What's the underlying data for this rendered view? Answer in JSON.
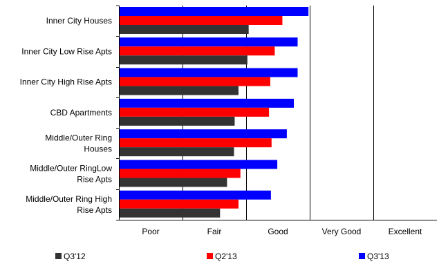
{
  "chart_data": {
    "type": "bar",
    "orientation": "horizontal",
    "categories": [
      "Inner City Houses",
      "Inner City Low Rise Apts",
      "Inner City High Rise Apts",
      "CBD Apartments",
      "Middle/Outer Ring Houses",
      "Middle/Outer RingLow Rise Apts",
      "Middle/Outer Ring High Rise Apts"
    ],
    "category_lines": [
      [
        "Inner City Houses"
      ],
      [
        "Inner City Low Rise Apts"
      ],
      [
        "Inner City High Rise Apts"
      ],
      [
        "CBD Apartments"
      ],
      [
        "Middle/Outer Ring",
        "Houses"
      ],
      [
        "Middle/Outer RingLow",
        "Rise Apts"
      ],
      [
        "Middle/Outer Ring High",
        "Rise Apts"
      ]
    ],
    "series": [
      {
        "name": "Q3'13",
        "color": "#0000ff",
        "values": [
          2.98,
          2.81,
          2.81,
          2.75,
          2.64,
          2.49,
          2.39
        ]
      },
      {
        "name": "Q2'13",
        "color": "#ff0000",
        "values": [
          2.57,
          2.45,
          2.38,
          2.36,
          2.4,
          1.91,
          1.88
        ]
      },
      {
        "name": "Q3'12",
        "color": "#333333",
        "values": [
          2.04,
          2.02,
          1.88,
          1.82,
          1.81,
          1.7,
          1.59
        ]
      }
    ],
    "x_tick_labels": [
      "Poor",
      "Fair",
      "Good",
      "Very Good",
      "Excellent"
    ],
    "xlim": [
      0,
      5
    ],
    "legend_order": [
      "Q3'12",
      "Q2'13",
      "Q3'13"
    ],
    "legend_position": "bottom",
    "grid": true
  }
}
